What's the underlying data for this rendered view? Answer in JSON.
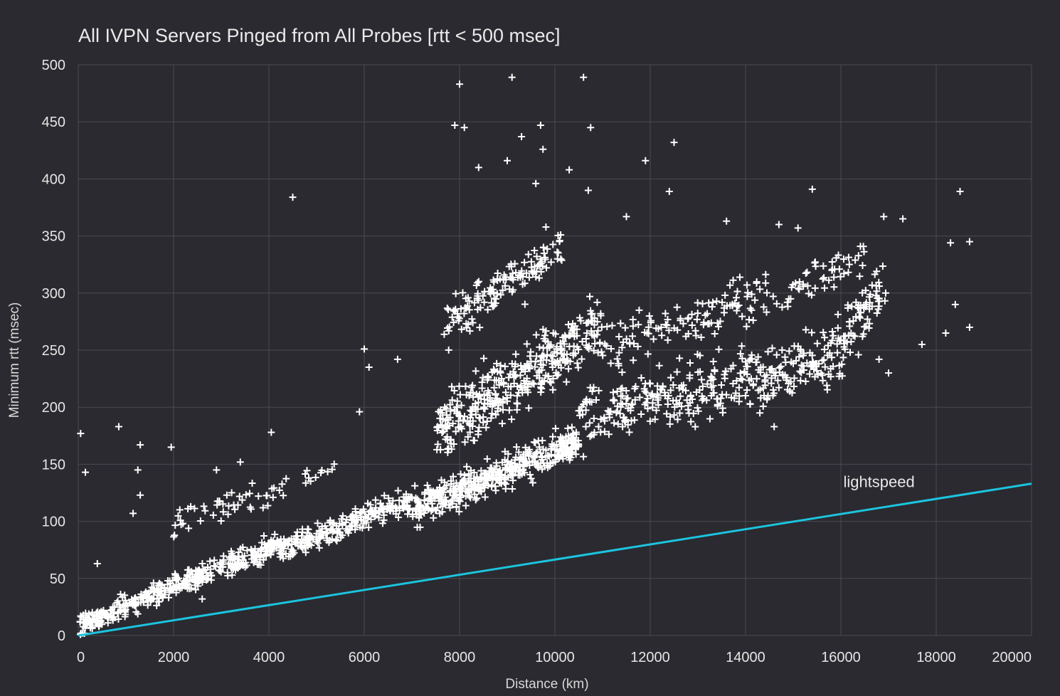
{
  "chart_data": {
    "type": "scatter",
    "title": "All IVPN Servers Pinged from All Probes [rtt < 500 msec]",
    "xlabel": "Distance (km)",
    "ylabel": "Minimum rtt (msec)",
    "xlim": [
      0,
      20000
    ],
    "ylim": [
      0,
      500
    ],
    "xticks": [
      "0",
      "2000",
      "4000",
      "6000",
      "8000",
      "10000",
      "12000",
      "14000",
      "16000",
      "18000",
      "20000"
    ],
    "yticks": [
      "0",
      "50",
      "100",
      "150",
      "200",
      "250",
      "300",
      "350",
      "400",
      "450",
      "500"
    ],
    "grid": true,
    "marker": "+",
    "colors": {
      "background": "#2a2a30",
      "points": "#ffffff",
      "reference": "#1cc4df",
      "grid": "#4a4a52"
    },
    "reference_line": {
      "label": "lightspeed",
      "x": [
        0,
        20000
      ],
      "y": [
        0,
        133
      ]
    },
    "outliers": [
      [
        50,
        177
      ],
      [
        150,
        143
      ],
      [
        850,
        183
      ],
      [
        1300,
        167
      ],
      [
        1950,
        165
      ],
      [
        2900,
        145
      ],
      [
        3400,
        152
      ],
      [
        4500,
        384
      ],
      [
        4050,
        178
      ],
      [
        5900,
        196
      ],
      [
        6000,
        251
      ],
      [
        6100,
        235
      ],
      [
        6700,
        242
      ],
      [
        8000,
        483
      ],
      [
        7900,
        447
      ],
      [
        8100,
        445
      ],
      [
        9100,
        489
      ],
      [
        10600,
        489
      ],
      [
        9300,
        437
      ],
      [
        9700,
        447
      ],
      [
        9750,
        426
      ],
      [
        10750,
        445
      ],
      [
        12500,
        432
      ],
      [
        11900,
        416
      ],
      [
        9000,
        416
      ],
      [
        8400,
        410
      ],
      [
        10300,
        408
      ],
      [
        9600,
        396
      ],
      [
        12400,
        389
      ],
      [
        15400,
        391
      ],
      [
        18500,
        389
      ],
      [
        10700,
        390
      ],
      [
        11500,
        367
      ],
      [
        16900,
        367
      ],
      [
        17300,
        365
      ],
      [
        13600,
        363
      ],
      [
        18300,
        344
      ],
      [
        18700,
        345
      ],
      [
        15100,
        357
      ],
      [
        14700,
        360
      ],
      [
        18400,
        290
      ],
      [
        18700,
        270
      ],
      [
        18200,
        265
      ],
      [
        17700,
        255
      ],
      [
        16800,
        242
      ],
      [
        17000,
        230
      ],
      [
        14300,
        195
      ],
      [
        14600,
        183
      ],
      [
        1150,
        107
      ],
      [
        1300,
        123
      ],
      [
        1250,
        145
      ],
      [
        400,
        63
      ],
      [
        2600,
        32
      ]
    ],
    "clusters": [
      {
        "x": [
          0,
          4200
        ],
        "y_at_x0": 8,
        "y_at_x1": 80,
        "spread": 14,
        "n": 420
      },
      {
        "x": [
          4200,
          7000
        ],
        "y_at_x0": 75,
        "y_at_x1": 120,
        "spread": 16,
        "n": 240
      },
      {
        "x": [
          7000,
          10500
        ],
        "y_at_x0": 110,
        "y_at_x1": 170,
        "spread": 22,
        "n": 460
      },
      {
        "x": [
          7500,
          11000
        ],
        "y_at_x0": 180,
        "y_at_x1": 270,
        "spread": 40,
        "n": 380
      },
      {
        "x": [
          7600,
          10200
        ],
        "y_at_x0": 270,
        "y_at_x1": 340,
        "spread": 30,
        "n": 140
      },
      {
        "x": [
          10500,
          15500
        ],
        "y_at_x0": 190,
        "y_at_x1": 240,
        "spread": 38,
        "n": 320
      },
      {
        "x": [
          11000,
          14500
        ],
        "y_at_x0": 250,
        "y_at_x1": 300,
        "spread": 35,
        "n": 120
      },
      {
        "x": [
          15500,
          17000
        ],
        "y_at_x0": 230,
        "y_at_x1": 310,
        "spread": 45,
        "n": 110
      },
      {
        "x": [
          14500,
          16500
        ],
        "y_at_x0": 290,
        "y_at_x1": 340,
        "spread": 25,
        "n": 50
      },
      {
        "x": [
          2000,
          5500
        ],
        "y_at_x0": 100,
        "y_at_x1": 145,
        "spread": 20,
        "n": 60
      }
    ]
  }
}
